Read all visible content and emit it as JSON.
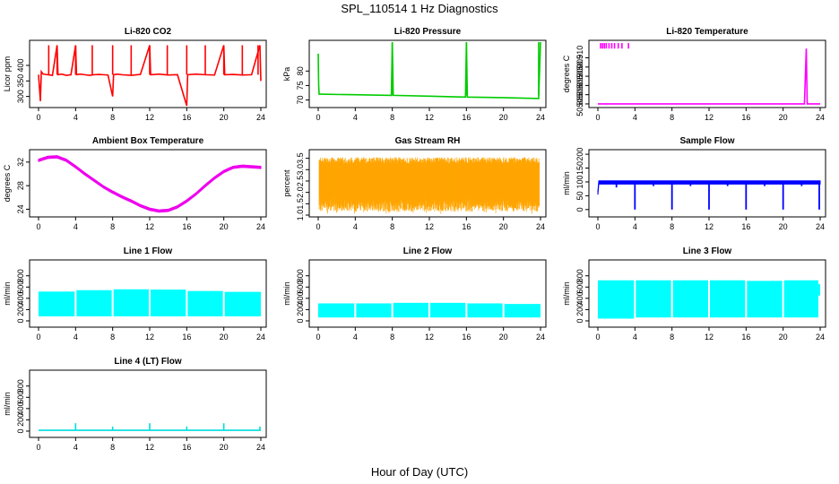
{
  "figure": {
    "title": "SPL_110514  1 Hz Diagnostics",
    "xlabel": "Hour of Day (UTC)"
  },
  "chart_data": [
    {
      "type": "line",
      "id": "co2",
      "title": "Li-820 CO2",
      "ylabel": "Licor ppm",
      "color": "#ff0000",
      "style": "line",
      "xlim": [
        0,
        24
      ],
      "ylim": [
        270,
        475
      ],
      "yticks": [
        300,
        350,
        400
      ],
      "yticklabels": [
        "300",
        "350",
        "400"
      ],
      "xticks": [
        0,
        4,
        8,
        12,
        16,
        20,
        24
      ],
      "xticklabels": [
        "0",
        "4",
        "8",
        "12",
        "16",
        "20",
        "24"
      ],
      "series": [
        {
          "name": "CO2",
          "x": [
            0,
            0.2,
            0.3,
            0.5,
            1.0,
            1.5,
            2.0,
            2.1,
            2.5,
            3.0,
            3.5,
            4.0,
            4.1,
            4.5,
            5.0,
            5.5,
            6.0,
            6.5,
            7.0,
            7.5,
            8.0,
            8.1,
            8.5,
            9.0,
            10.0,
            11.0,
            12.0,
            12.1,
            13.0,
            14.0,
            15.0,
            16.0,
            16.1,
            17.0,
            18.0,
            19.0,
            20.0,
            20.1,
            21.0,
            22.0,
            23.0,
            23.9,
            24.0
          ],
          "y": [
            370,
            285,
            380,
            372,
            370,
            368,
            465,
            370,
            372,
            368,
            370,
            465,
            370,
            372,
            370,
            368,
            370,
            371,
            370,
            369,
            300,
            370,
            372,
            370,
            368,
            371,
            465,
            370,
            372,
            369,
            370,
            270,
            370,
            372,
            370,
            369,
            465,
            370,
            371,
            369,
            370,
            465,
            350
          ]
        }
      ],
      "spikes": [
        {
          "x": 1.1,
          "y": 465
        },
        {
          "x": 2.0,
          "y": 465
        },
        {
          "x": 4.0,
          "y": 465
        },
        {
          "x": 5.8,
          "y": 465
        },
        {
          "x": 8.0,
          "y": 465
        },
        {
          "x": 10.0,
          "y": 465
        },
        {
          "x": 12.0,
          "y": 465
        },
        {
          "x": 13.9,
          "y": 465
        },
        {
          "x": 16.0,
          "y": 465
        },
        {
          "x": 18.0,
          "y": 465
        },
        {
          "x": 20.0,
          "y": 465
        },
        {
          "x": 22.0,
          "y": 465
        },
        {
          "x": 23.7,
          "y": 465
        }
      ]
    },
    {
      "type": "line",
      "id": "pressure",
      "title": "Li-820 Pressure",
      "ylabel": "kPa",
      "color": "#00cc00",
      "style": "line",
      "xlim": [
        0,
        24
      ],
      "ylim": [
        68,
        90
      ],
      "yticks": [
        70,
        75,
        80
      ],
      "yticklabels": [
        "70",
        "75",
        "80"
      ],
      "xticks": [
        0,
        4,
        8,
        12,
        16,
        20,
        24
      ],
      "xticklabels": [
        "0",
        "4",
        "8",
        "12",
        "16",
        "20",
        "24"
      ],
      "series": [
        {
          "name": "Pressure",
          "x": [
            0,
            0.05,
            0.1,
            0.3,
            4.0,
            7.9,
            8.0,
            8.1,
            12.0,
            15.9,
            16.0,
            16.1,
            20.0,
            23.8,
            24.0
          ],
          "y": [
            86,
            75,
            72,
            72,
            71.8,
            71.6,
            90,
            71.6,
            71.3,
            71,
            90,
            71,
            70.8,
            70.5,
            90
          ]
        }
      ],
      "spikes": [
        {
          "x": 8.0,
          "y": 90
        },
        {
          "x": 16.0,
          "y": 90
        },
        {
          "x": 23.8,
          "y": 90
        }
      ]
    },
    {
      "type": "line",
      "id": "licor_temp",
      "title": "Li-820 Temperature",
      "ylabel": "degrees C",
      "color": "#ff00ff",
      "style": "line",
      "xlim": [
        0,
        24
      ],
      "ylim": [
        50.884,
        50.9185
      ],
      "yticks": [
        50.885,
        50.89,
        50.895,
        50.9,
        50.905,
        50.91
      ],
      "yticklabels": [
        "50.885",
        "50.890",
        "50.895",
        "50.900",
        "50.905",
        "50.910"
      ],
      "xticks": [
        0,
        4,
        8,
        12,
        16,
        20,
        24
      ],
      "xticklabels": [
        "0",
        "4",
        "8",
        "12",
        "16",
        "20",
        "24"
      ],
      "series": [
        {
          "name": "Temperature",
          "x": [
            0,
            3.5,
            22.3,
            22.5,
            22.6,
            24
          ],
          "y": [
            50.885,
            50.885,
            50.885,
            50.915,
            50.885,
            50.885
          ]
        }
      ],
      "spikes": [
        {
          "x": 0.3,
          "y": 50.918
        },
        {
          "x": 0.5,
          "y": 50.918
        },
        {
          "x": 0.7,
          "y": 50.918
        },
        {
          "x": 0.9,
          "y": 50.918
        },
        {
          "x": 1.2,
          "y": 50.918
        },
        {
          "x": 1.5,
          "y": 50.918
        },
        {
          "x": 1.8,
          "y": 50.918
        },
        {
          "x": 2.2,
          "y": 50.918
        },
        {
          "x": 2.6,
          "y": 50.918
        },
        {
          "x": 3.3,
          "y": 50.918
        },
        {
          "x": 22.5,
          "y": 50.915
        }
      ]
    },
    {
      "type": "scatter",
      "id": "ambient",
      "title": "Ambient Box Temperature",
      "ylabel": "degrees C",
      "color": "#ee00ee",
      "style": "band",
      "bandWidth": 0.4,
      "xlim": [
        0,
        24
      ],
      "ylim": [
        23,
        33.8
      ],
      "yticks": [
        24,
        28,
        32
      ],
      "yticklabels": [
        "24",
        "28",
        "32"
      ],
      "xticks": [
        0,
        4,
        8,
        12,
        16,
        20,
        24
      ],
      "xticklabels": [
        "0",
        "4",
        "8",
        "12",
        "16",
        "20",
        "24"
      ],
      "series": [
        {
          "name": "Ambient",
          "x": [
            0,
            1,
            2,
            3,
            4,
            5,
            6,
            7,
            8,
            9,
            10,
            11,
            12,
            13,
            14,
            15,
            16,
            17,
            18,
            19,
            20,
            21,
            22,
            23,
            24
          ],
          "y": [
            32.3,
            32.8,
            32.9,
            32.3,
            31.2,
            30.0,
            28.9,
            27.8,
            26.9,
            26.1,
            25.4,
            24.6,
            24.0,
            23.7,
            23.8,
            24.4,
            25.4,
            26.6,
            28.0,
            29.3,
            30.4,
            31.1,
            31.3,
            31.2,
            31.1
          ]
        }
      ]
    },
    {
      "type": "scatter",
      "id": "rh",
      "title": "Gas Stream RH",
      "ylabel": "percent",
      "color": "#ffa500",
      "style": "noise",
      "seed": 7,
      "xlim": [
        0,
        24
      ],
      "ylim": [
        1.0,
        3.8
      ],
      "yticks": [
        1.0,
        1.5,
        2.0,
        2.5,
        3.0,
        3.5
      ],
      "yticklabels": [
        "1.0",
        "1.5",
        "2.0",
        "2.5",
        "3.0",
        "3.5"
      ],
      "xticks": [
        0,
        4,
        8,
        12,
        16,
        20,
        24
      ],
      "xticklabels": [
        "0",
        "4",
        "8",
        "12",
        "16",
        "20",
        "24"
      ],
      "band": {
        "low": 1.4,
        "high": 3.4,
        "min": 1.05,
        "max": 3.7
      }
    },
    {
      "type": "line",
      "id": "sample_flow",
      "title": "Sample Flow",
      "ylabel": "ml/min",
      "color": "#0000ff",
      "style": "band",
      "bandWidth": 12,
      "xlim": [
        0,
        24
      ],
      "ylim": [
        -20,
        210
      ],
      "yticks": [
        0,
        50,
        100,
        150,
        200
      ],
      "yticklabels": [
        "0",
        "50",
        "100",
        "150",
        "200"
      ],
      "xticks": [
        0,
        4,
        8,
        12,
        16,
        20,
        24
      ],
      "xticklabels": [
        "0",
        "4",
        "8",
        "12",
        "16",
        "20",
        "24"
      ],
      "series": [
        {
          "name": "Sample Flow",
          "x": [
            0,
            0.1,
            24
          ],
          "y": [
            60,
            98,
            98
          ]
        }
      ],
      "dips": [
        {
          "x": 2.0,
          "y": 80
        },
        {
          "x": 4.0,
          "y": 0
        },
        {
          "x": 6.0,
          "y": 85
        },
        {
          "x": 8.0,
          "y": 0
        },
        {
          "x": 10.0,
          "y": 85
        },
        {
          "x": 12.0,
          "y": 0
        },
        {
          "x": 14.0,
          "y": 85
        },
        {
          "x": 16.0,
          "y": 0
        },
        {
          "x": 18.0,
          "y": 85
        },
        {
          "x": 20.0,
          "y": 0
        },
        {
          "x": 22.0,
          "y": 85
        },
        {
          "x": 23.9,
          "y": 0
        }
      ]
    },
    {
      "type": "area",
      "id": "line1",
      "title": "Line 1 Flow",
      "ylabel": "ml/min",
      "color": "#00ffff",
      "style": "fill",
      "xlim": [
        0,
        24
      ],
      "ylim": [
        -80,
        1050
      ],
      "yticks": [
        0,
        200,
        400,
        600,
        800
      ],
      "yticklabels": [
        "0",
        "200",
        "400",
        "600",
        "800"
      ],
      "xticks": [
        0,
        4,
        8,
        12,
        16,
        20,
        24
      ],
      "xticklabels": [
        "0",
        "4",
        "8",
        "12",
        "16",
        "20",
        "24"
      ],
      "segments": [
        {
          "x0": 0,
          "x1": 3.9,
          "low": 80,
          "high": 520
        },
        {
          "x0": 4.1,
          "x1": 7.9,
          "low": 80,
          "high": 545
        },
        {
          "x0": 8.1,
          "x1": 11.9,
          "low": 80,
          "high": 560
        },
        {
          "x0": 12.1,
          "x1": 15.9,
          "low": 80,
          "high": 555
        },
        {
          "x0": 16.1,
          "x1": 19.9,
          "low": 80,
          "high": 530
        },
        {
          "x0": 20.1,
          "x1": 24,
          "low": 80,
          "high": 515
        }
      ]
    },
    {
      "type": "area",
      "id": "line2",
      "title": "Line 2 Flow",
      "ylabel": "ml/min",
      "color": "#00ffff",
      "style": "fill",
      "xlim": [
        0,
        24
      ],
      "ylim": [
        -80,
        1050
      ],
      "yticks": [
        0,
        200,
        400,
        600,
        800
      ],
      "yticklabels": [
        "0",
        "200",
        "400",
        "600",
        "800"
      ],
      "xticks": [
        0,
        4,
        8,
        12,
        16,
        20,
        24
      ],
      "xticklabels": [
        "0",
        "4",
        "8",
        "12",
        "16",
        "20",
        "24"
      ],
      "segments": [
        {
          "x0": 0,
          "x1": 3.9,
          "low": 60,
          "high": 310
        },
        {
          "x0": 4.1,
          "x1": 7.9,
          "low": 60,
          "high": 310
        },
        {
          "x0": 8.1,
          "x1": 11.9,
          "low": 60,
          "high": 320
        },
        {
          "x0": 12.1,
          "x1": 15.9,
          "low": 60,
          "high": 320
        },
        {
          "x0": 16.1,
          "x1": 19.9,
          "low": 60,
          "high": 310
        },
        {
          "x0": 20.1,
          "x1": 24,
          "low": 60,
          "high": 300
        }
      ]
    },
    {
      "type": "area",
      "id": "line3",
      "title": "Line 3 Flow",
      "ylabel": "ml/min",
      "color": "#00ffff",
      "style": "fill",
      "xlim": [
        0,
        24
      ],
      "ylim": [
        -80,
        1050
      ],
      "yticks": [
        0,
        200,
        400,
        600,
        800
      ],
      "yticklabels": [
        "0",
        "200",
        "400",
        "600",
        "800"
      ],
      "xticks": [
        0,
        4,
        8,
        12,
        16,
        20,
        24
      ],
      "xticklabels": [
        "0",
        "4",
        "8",
        "12",
        "16",
        "20",
        "24"
      ],
      "segments": [
        {
          "x0": 0,
          "x1": 3.9,
          "low": 40,
          "high": 720
        },
        {
          "x0": 4.1,
          "x1": 7.9,
          "low": 60,
          "high": 720
        },
        {
          "x0": 8.1,
          "x1": 11.9,
          "low": 60,
          "high": 720
        },
        {
          "x0": 12.1,
          "x1": 15.9,
          "low": 60,
          "high": 720
        },
        {
          "x0": 16.1,
          "x1": 19.9,
          "low": 60,
          "high": 710
        },
        {
          "x0": 20.1,
          "x1": 23.8,
          "low": 60,
          "high": 720
        },
        {
          "x0": 23.8,
          "x1": 24,
          "low": 450,
          "high": 650
        }
      ]
    },
    {
      "type": "line",
      "id": "line4",
      "title": "Line 4 (LT) Flow",
      "ylabel": "ml/min",
      "color": "#00dddd",
      "style": "line",
      "xlim": [
        0,
        24
      ],
      "ylim": [
        -80,
        1050
      ],
      "yticks": [
        0,
        200,
        400,
        600,
        800
      ],
      "yticklabels": [
        "0",
        "200",
        "400",
        "600",
        "800"
      ],
      "xticks": [
        0,
        4,
        8,
        12,
        16,
        20,
        24
      ],
      "xticklabels": [
        "0",
        "4",
        "8",
        "12",
        "16",
        "20",
        "24"
      ],
      "series": [
        {
          "name": "Line 4",
          "x": [
            0,
            24
          ],
          "y": [
            15,
            15
          ]
        }
      ],
      "spikes": [
        {
          "x": 4.0,
          "y": 140
        },
        {
          "x": 8.0,
          "y": 80
        },
        {
          "x": 12.0,
          "y": 140
        },
        {
          "x": 16.0,
          "y": 80
        },
        {
          "x": 20.0,
          "y": 140
        },
        {
          "x": 23.9,
          "y": 80
        }
      ]
    }
  ]
}
